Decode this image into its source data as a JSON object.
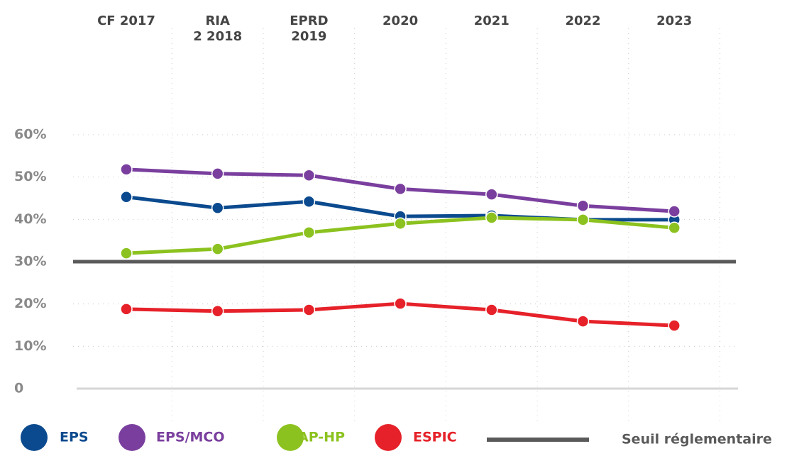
{
  "chart_data": {
    "type": "line",
    "categories": [
      "CF 2017",
      "RIA\n2 2018",
      "EPRD\n2019",
      "2020",
      "2021",
      "2022",
      "2023"
    ],
    "series": [
      {
        "name": "EPS",
        "color": "#0b4a8e",
        "values": [
          45.3,
          42.7,
          44.2,
          40.7,
          40.9,
          39.9,
          39.9
        ]
      },
      {
        "name": "EPS/MCO",
        "color": "#7a3f9e",
        "values": [
          51.8,
          50.8,
          50.4,
          47.2,
          45.9,
          43.2,
          41.9
        ]
      },
      {
        "name": "AP-HP",
        "color": "#8cc21f",
        "values": [
          32.0,
          33.0,
          36.9,
          39.0,
          40.4,
          39.9,
          38.0
        ]
      },
      {
        "name": "ESPIC",
        "color": "#e62129",
        "values": [
          18.8,
          18.3,
          18.6,
          20.1,
          18.6,
          15.9,
          14.9
        ]
      }
    ],
    "threshold": {
      "name": "Seuil réglementaire",
      "value": 30,
      "color": "#5a5a5a"
    },
    "ylim": [
      0,
      60
    ],
    "yticks": [
      0,
      {
        "value": 10,
        "label": "10%"
      },
      {
        "value": 20,
        "label": "20%"
      },
      {
        "value": 30,
        "label": "30%"
      },
      {
        "value": 40,
        "label": "40%"
      },
      {
        "value": 50,
        "label": "50%"
      },
      {
        "value": 60,
        "label": "60%"
      }
    ],
    "grid": true
  }
}
